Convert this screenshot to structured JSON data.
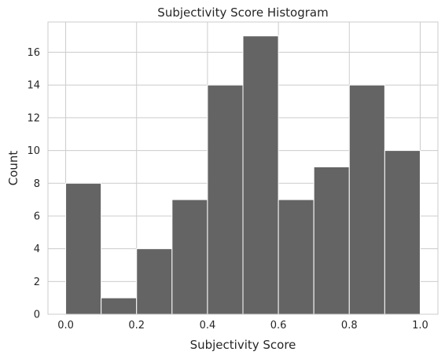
{
  "chart_data": {
    "type": "bar",
    "title": "Subjectivity Score Histogram",
    "xlabel": "Subjectivity Score",
    "ylabel": "Count",
    "bins": [
      {
        "start": 0.0,
        "end": 0.1,
        "count": 8
      },
      {
        "start": 0.1,
        "end": 0.2,
        "count": 1
      },
      {
        "start": 0.2,
        "end": 0.3,
        "count": 4
      },
      {
        "start": 0.3,
        "end": 0.4,
        "count": 7
      },
      {
        "start": 0.4,
        "end": 0.5,
        "count": 14
      },
      {
        "start": 0.5,
        "end": 0.6,
        "count": 17
      },
      {
        "start": 0.6,
        "end": 0.7,
        "count": 7
      },
      {
        "start": 0.7,
        "end": 0.8,
        "count": 9
      },
      {
        "start": 0.8,
        "end": 0.9,
        "count": 14
      },
      {
        "start": 0.9,
        "end": 1.0,
        "count": 10
      }
    ],
    "xlim": [
      -0.05,
      1.05
    ],
    "ylim": [
      0,
      17.85
    ],
    "xticks": [
      0.0,
      0.2,
      0.4,
      0.6,
      0.8,
      1.0
    ],
    "xtick_labels": [
      "0.0",
      "0.2",
      "0.4",
      "0.6",
      "0.8",
      "1.0"
    ],
    "yticks": [
      0,
      2,
      4,
      6,
      8,
      10,
      12,
      14,
      16
    ],
    "ytick_labels": [
      "0",
      "2",
      "4",
      "6",
      "8",
      "10",
      "12",
      "14",
      "16"
    ],
    "grid": true,
    "colors": {
      "bar_fill": "#646464",
      "bar_edge": "#ffffff",
      "grid": "#cccccc",
      "background": "#ffffff",
      "text": "#262626"
    }
  }
}
